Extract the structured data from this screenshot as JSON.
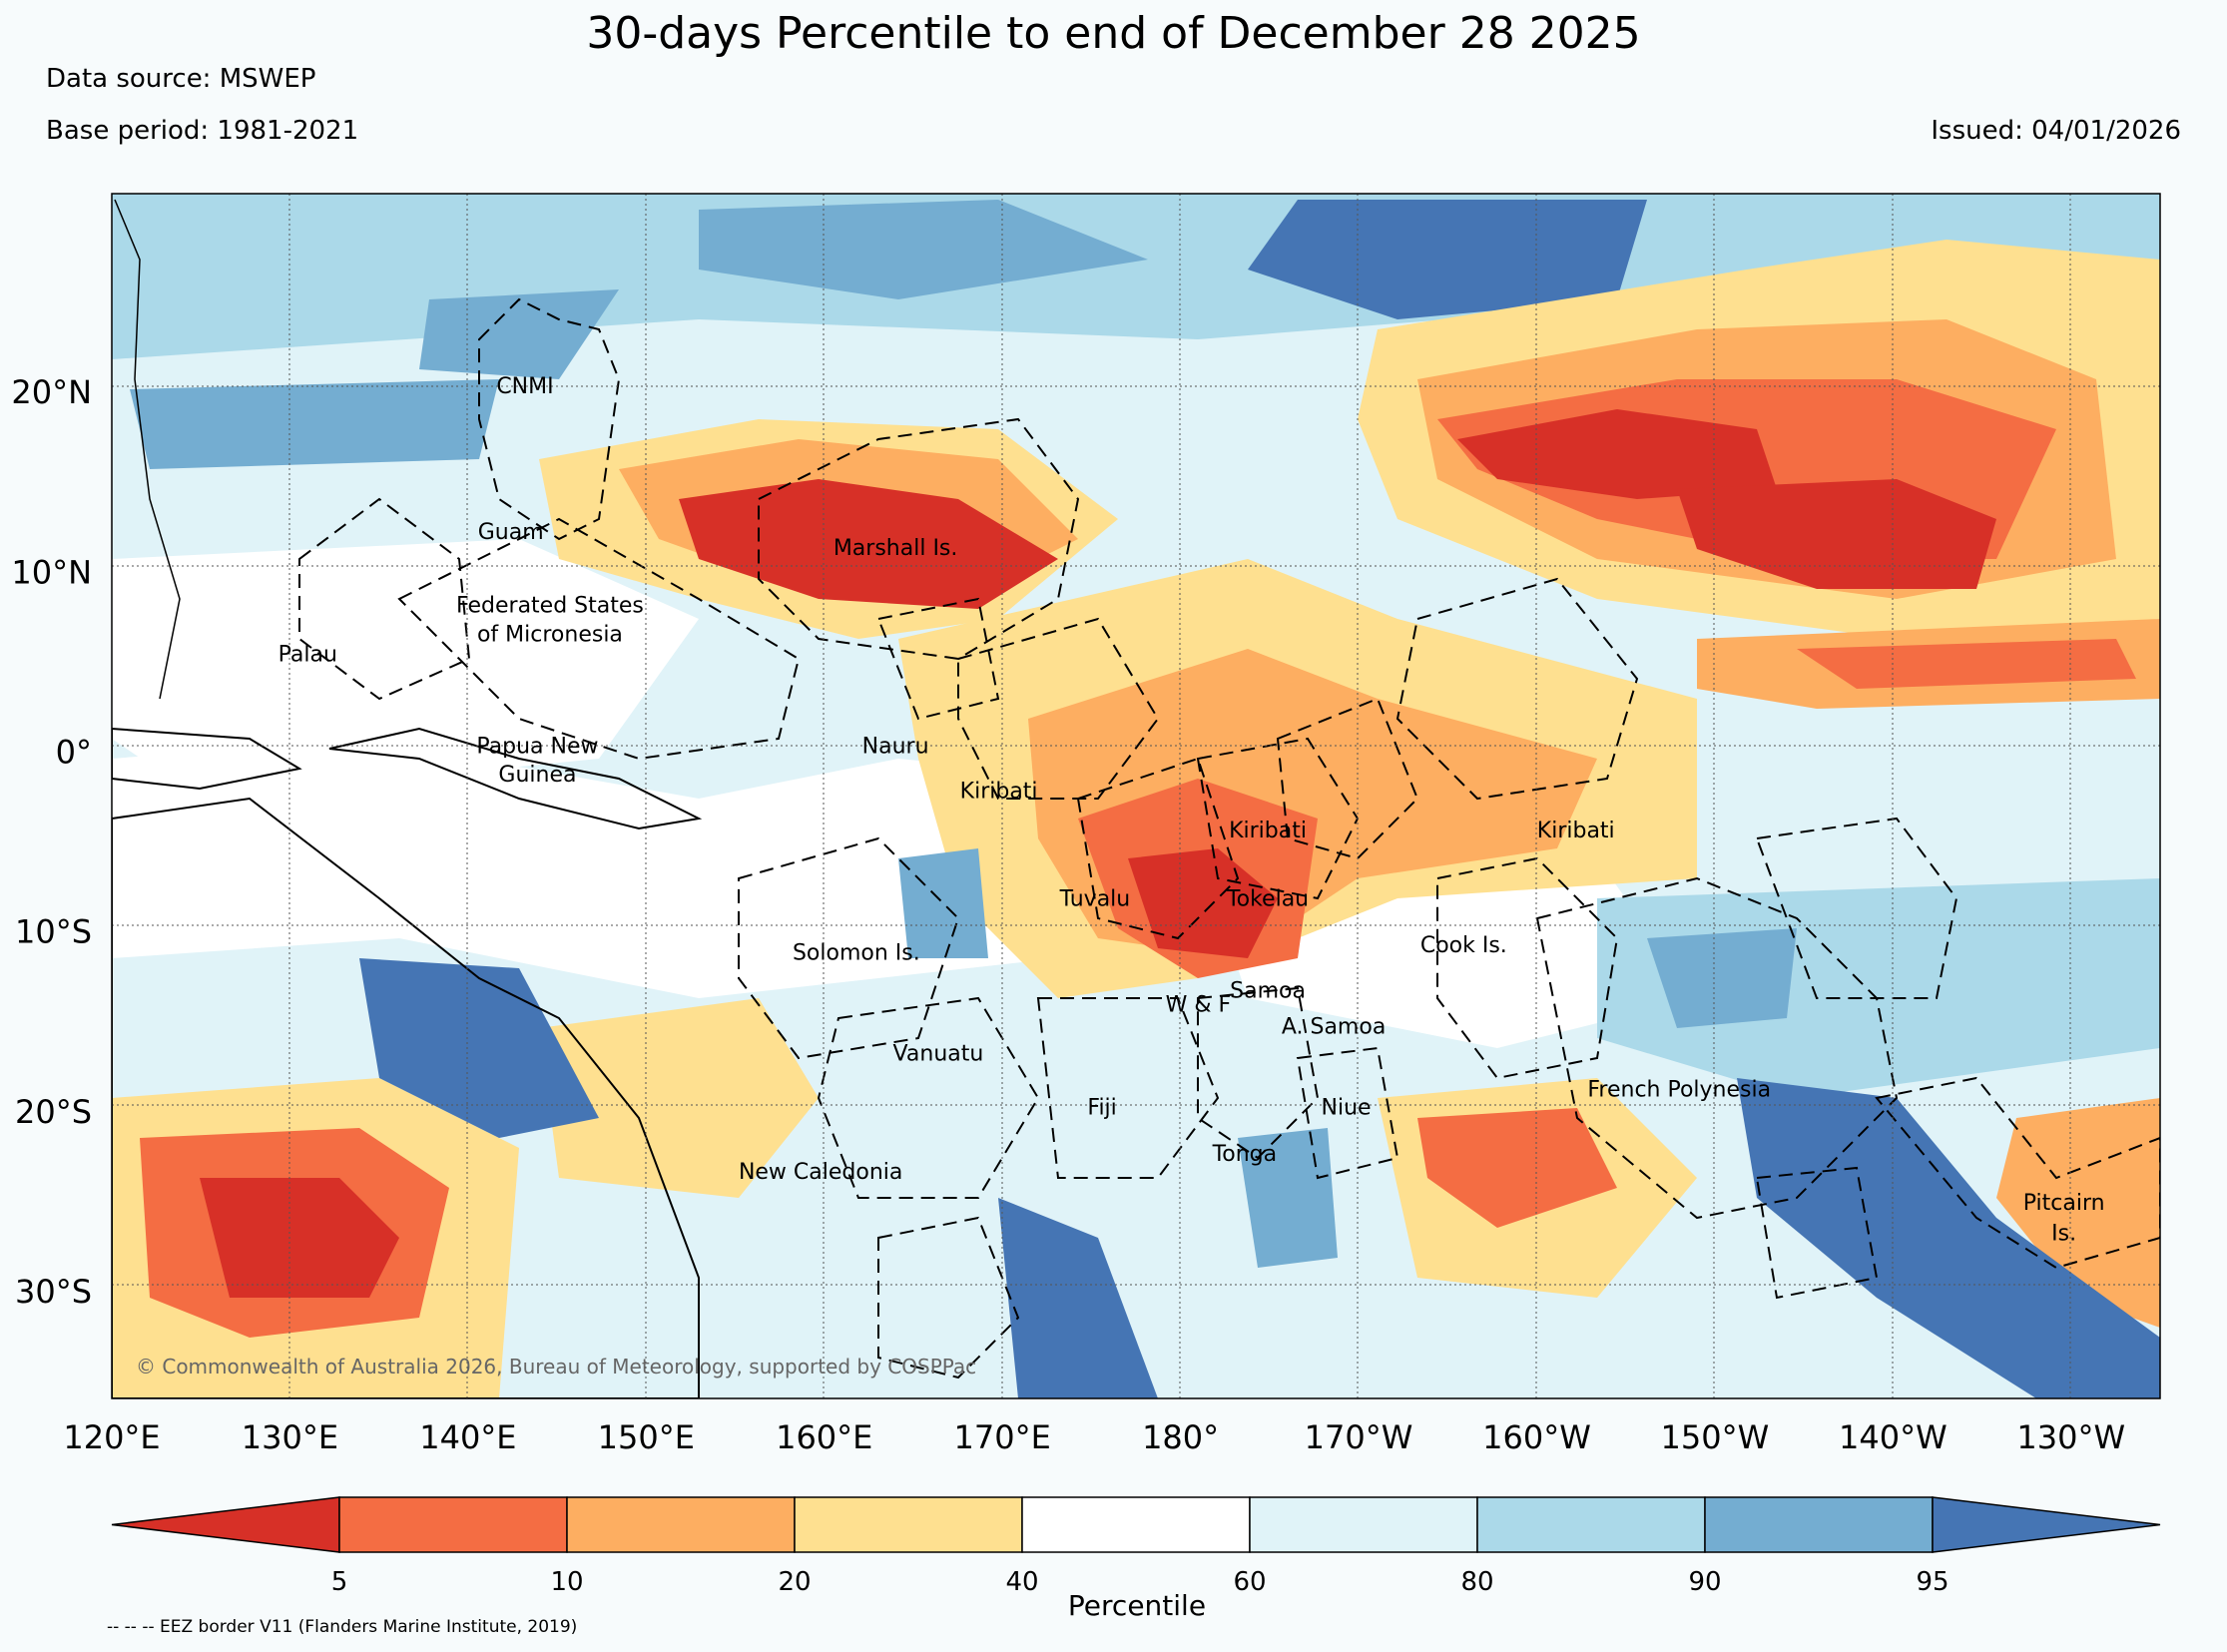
{
  "title": "30-days Percentile to end of December 28 2025",
  "data_source": "Data source: MSWEP",
  "base_period": "Base period: 1981-2021",
  "issued": "Issued: 04/01/2026",
  "copyright": "© Commonwealth of Australia 2026, Bureau of Meteorology, supported by COSPPac",
  "eez_note": "-- -- -- EEZ border V11 (Flanders Marine Institute, 2019)",
  "map": {
    "lon_range": [
      120,
      235
    ],
    "lat_range": [
      -36,
      31
    ],
    "lon_ticks": [
      {
        "lon": 120,
        "label": "120°E"
      },
      {
        "lon": 130,
        "label": "130°E"
      },
      {
        "lon": 140,
        "label": "140°E"
      },
      {
        "lon": 150,
        "label": "150°E"
      },
      {
        "lon": 160,
        "label": "160°E"
      },
      {
        "lon": 170,
        "label": "170°E"
      },
      {
        "lon": 180,
        "label": "180°"
      },
      {
        "lon": 190,
        "label": "170°W"
      },
      {
        "lon": 200,
        "label": "160°W"
      },
      {
        "lon": 210,
        "label": "150°W"
      },
      {
        "lon": 220,
        "label": "140°W"
      },
      {
        "lon": 230,
        "label": "130°W"
      }
    ],
    "lat_ticks": [
      {
        "lat": 20,
        "label": "20°N"
      },
      {
        "lat": 10,
        "label": "10°N"
      },
      {
        "lat": 0,
        "label": "0°"
      },
      {
        "lat": -10,
        "label": "10°S"
      },
      {
        "lat": -20,
        "label": "20°S"
      },
      {
        "lat": -30,
        "label": "30°S"
      }
    ],
    "places": [
      {
        "label": "CNMI",
        "lon": 143.2,
        "lat": 19.9
      },
      {
        "label": "Guam",
        "lon": 142.4,
        "lat": 11.8
      },
      {
        "label": "Marshall Is.",
        "lon": 164.0,
        "lat": 10.9
      },
      {
        "label": "Federated States",
        "lon": 144.6,
        "lat": 7.7
      },
      {
        "label": "of Micronesia",
        "lon": 144.6,
        "lat": 6.1
      },
      {
        "label": "Palau",
        "lon": 131.0,
        "lat": 5.0
      },
      {
        "label": "Papua New",
        "lon": 143.9,
        "lat": -0.1
      },
      {
        "label": "Guinea",
        "lon": 143.9,
        "lat": -1.7
      },
      {
        "label": "Nauru",
        "lon": 164.0,
        "lat": -0.1
      },
      {
        "label": "Kiribati",
        "lon": 169.8,
        "lat": -2.6
      },
      {
        "label": "Kiribati",
        "lon": 184.9,
        "lat": -4.8
      },
      {
        "label": "Kiribati",
        "lon": 202.2,
        "lat": -4.8
      },
      {
        "label": "Tuvalu",
        "lon": 175.2,
        "lat": -8.6
      },
      {
        "label": "Tokelau",
        "lon": 184.9,
        "lat": -8.6
      },
      {
        "label": "Cook Is.",
        "lon": 195.9,
        "lat": -11.2
      },
      {
        "label": "Solomon Is.",
        "lon": 161.8,
        "lat": -11.6
      },
      {
        "label": "Samoa",
        "lon": 184.9,
        "lat": -13.7
      },
      {
        "label": "W & F",
        "lon": 181.0,
        "lat": -14.5
      },
      {
        "label": "A. Samoa",
        "lon": 188.6,
        "lat": -15.7
      },
      {
        "label": "Vanuatu",
        "lon": 166.4,
        "lat": -17.2
      },
      {
        "label": "French Polynesia",
        "lon": 208.0,
        "lat": -19.2
      },
      {
        "label": "Fiji",
        "lon": 175.6,
        "lat": -20.2
      },
      {
        "label": "Niue",
        "lon": 189.3,
        "lat": -20.2
      },
      {
        "label": "Tonga",
        "lon": 183.6,
        "lat": -22.8
      },
      {
        "label": "New Caledonia",
        "lon": 159.8,
        "lat": -23.8
      },
      {
        "label": "Pitcairn",
        "lon": 229.6,
        "lat": -25.5
      },
      {
        "label": "Is.",
        "lon": 229.6,
        "lat": -27.2
      }
    ]
  },
  "colorbar": {
    "label": "Percentile",
    "ticks": [
      "5",
      "10",
      "20",
      "40",
      "60",
      "80",
      "90",
      "95"
    ],
    "colors": [
      "#d73027",
      "#f46d43",
      "#fdae61",
      "#fee090",
      "#ffffff",
      "#e0f3f8",
      "#abd9e9",
      "#74add1",
      "#4575b4"
    ]
  }
}
